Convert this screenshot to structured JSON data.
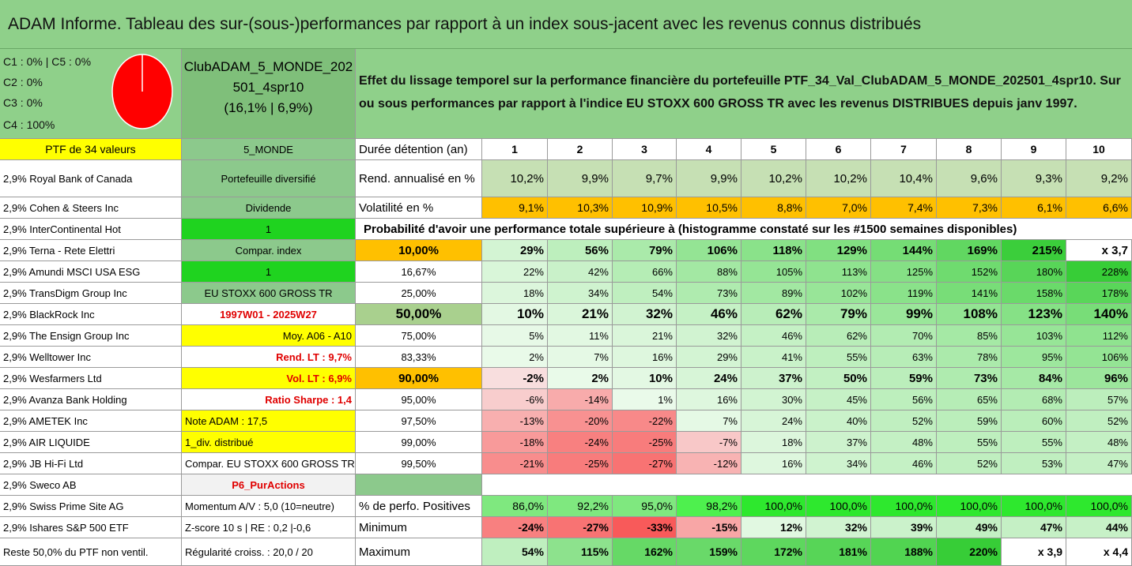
{
  "title": "ADAM Informe. Tableau des sur-(sous-)performances par rapport à un index sous-jacent avec les revenus connus distribués",
  "allocation": [
    "C1 : 0% | C5 : 0%",
    "C2 : 0%",
    "C3 : 0%",
    "C4 : 100%"
  ],
  "pie_color": "#ff0000",
  "club": {
    "line1": "ClubADAM_5_MONDE_202",
    "line2": "501_4spr10",
    "line3": "(16,1% | 6,9%)"
  },
  "effect_text": {
    "line1": "Effet du lissage temporel sur la performance financière du portefeuille PTF_34_Val_ClubADAM_5_MONDE_202501_4spr10. Sur",
    "line2": "ou sous performances par rapport à l'indice EU STOXX 600 GROSS TR avec les revenus DISTRIBUES depuis janv 1997."
  },
  "holdings": [
    "PTF de 34 valeurs",
    "2,9% Royal Bank of Canada",
    "2,9% Cohen & Steers Inc",
    "2,9% InterContinental Hot",
    "2,9% Terna - Rete Elettri",
    "2,9% Amundi MSCI USA ESG",
    "2,9% TransDigm Group Inc",
    "2,9% BlackRock Inc",
    "2,9% The Ensign Group Inc",
    "2,9% Welltower Inc",
    "2,9% Wesfarmers Ltd",
    "2,9% Avanza Bank Holding",
    "2,9% AMETEK Inc",
    "2,9% AIR LIQUIDE",
    "2,9% JB Hi-Fi Ltd",
    "2,9% Sweco AB",
    "2,9% Swiss Prime Site AG",
    "2,9% Ishares S&P 500 ETF",
    "Reste 50,0% du PTF non ventil."
  ],
  "info": [
    "5_MONDE",
    "Portefeuille diversifié",
    "Dividende",
    "1",
    "Compar. index",
    "1",
    "EU STOXX 600 GROSS TR",
    "1997W01 - 2025W27",
    "Moy. A06 - A10",
    "Rend. LT : 9,7%",
    "Vol. LT : 6,9%",
    "Ratio Sharpe : 1,4",
    "Note ADAM : 17,5",
    "1_div. distribué",
    "Compar. EU STOXX 600 GROSS TR",
    "P6_PurActions",
    "Momentum A/V : 5,0 (10=neutre)",
    "Z-score 10 s | RE : 0,2 |-0,6",
    "Régularité croiss. : 20,0 / 20"
  ],
  "table": {
    "header_label": "Durée détention (an)",
    "years": [
      "1",
      "2",
      "3",
      "4",
      "5",
      "6",
      "7",
      "8",
      "9",
      "10"
    ],
    "rend_label": "Rend. annualisé en %",
    "rend": [
      "10,2%",
      "9,9%",
      "9,7%",
      "9,9%",
      "10,2%",
      "10,2%",
      "10,4%",
      "9,6%",
      "9,3%",
      "9,2%"
    ],
    "vol_label": "Volatilité en %",
    "vol": [
      "9,1%",
      "10,3%",
      "10,9%",
      "10,5%",
      "8,8%",
      "7,0%",
      "7,4%",
      "7,3%",
      "6,1%",
      "6,6%"
    ],
    "prob_title": "Probabilité d'avoir une performance totale supérieure à (histogramme constaté sur les #1500 semaines disponibles)",
    "prob_rows": [
      {
        "p": "10,00%",
        "v": [
          "29%",
          "56%",
          "79%",
          "106%",
          "118%",
          "129%",
          "144%",
          "169%",
          "215%",
          "x 3,7"
        ]
      },
      {
        "p": "16,67%",
        "v": [
          "22%",
          "42%",
          "66%",
          "88%",
          "105%",
          "113%",
          "125%",
          "152%",
          "180%",
          "228%"
        ]
      },
      {
        "p": "25,00%",
        "v": [
          "18%",
          "34%",
          "54%",
          "73%",
          "89%",
          "102%",
          "119%",
          "141%",
          "158%",
          "178%"
        ]
      },
      {
        "p": "50,00%",
        "v": [
          "10%",
          "21%",
          "32%",
          "46%",
          "62%",
          "79%",
          "99%",
          "108%",
          "123%",
          "140%"
        ]
      },
      {
        "p": "75,00%",
        "v": [
          "5%",
          "11%",
          "21%",
          "32%",
          "46%",
          "62%",
          "70%",
          "85%",
          "103%",
          "112%"
        ]
      },
      {
        "p": "83,33%",
        "v": [
          "2%",
          "7%",
          "16%",
          "29%",
          "41%",
          "55%",
          "63%",
          "78%",
          "95%",
          "106%"
        ]
      },
      {
        "p": "90,00%",
        "v": [
          "-2%",
          "2%",
          "10%",
          "24%",
          "37%",
          "50%",
          "59%",
          "73%",
          "84%",
          "96%"
        ]
      },
      {
        "p": "95,00%",
        "v": [
          "-6%",
          "-14%",
          "1%",
          "16%",
          "30%",
          "45%",
          "56%",
          "65%",
          "68%",
          "57%"
        ]
      },
      {
        "p": "97,50%",
        "v": [
          "-13%",
          "-20%",
          "-22%",
          "7%",
          "24%",
          "40%",
          "52%",
          "59%",
          "60%",
          "52%"
        ]
      },
      {
        "p": "99,00%",
        "v": [
          "-18%",
          "-24%",
          "-25%",
          "-7%",
          "18%",
          "37%",
          "48%",
          "55%",
          "55%",
          "48%"
        ]
      },
      {
        "p": "99,50%",
        "v": [
          "-21%",
          "-25%",
          "-27%",
          "-12%",
          "16%",
          "34%",
          "46%",
          "52%",
          "53%",
          "47%"
        ]
      }
    ],
    "pos_label": "% de perfo. Positives",
    "pos": [
      "86,0%",
      "92,2%",
      "95,0%",
      "98,2%",
      "100,0%",
      "100,0%",
      "100,0%",
      "100,0%",
      "100,0%",
      "100,0%"
    ],
    "min_label": "Minimum",
    "min": [
      "-24%",
      "-27%",
      "-33%",
      "-15%",
      "12%",
      "32%",
      "39%",
      "49%",
      "47%",
      "44%"
    ],
    "max_label": "Maximum",
    "max": [
      "54%",
      "115%",
      "162%",
      "159%",
      "172%",
      "181%",
      "188%",
      "220%",
      "x 3,9",
      "x 4,4"
    ]
  }
}
